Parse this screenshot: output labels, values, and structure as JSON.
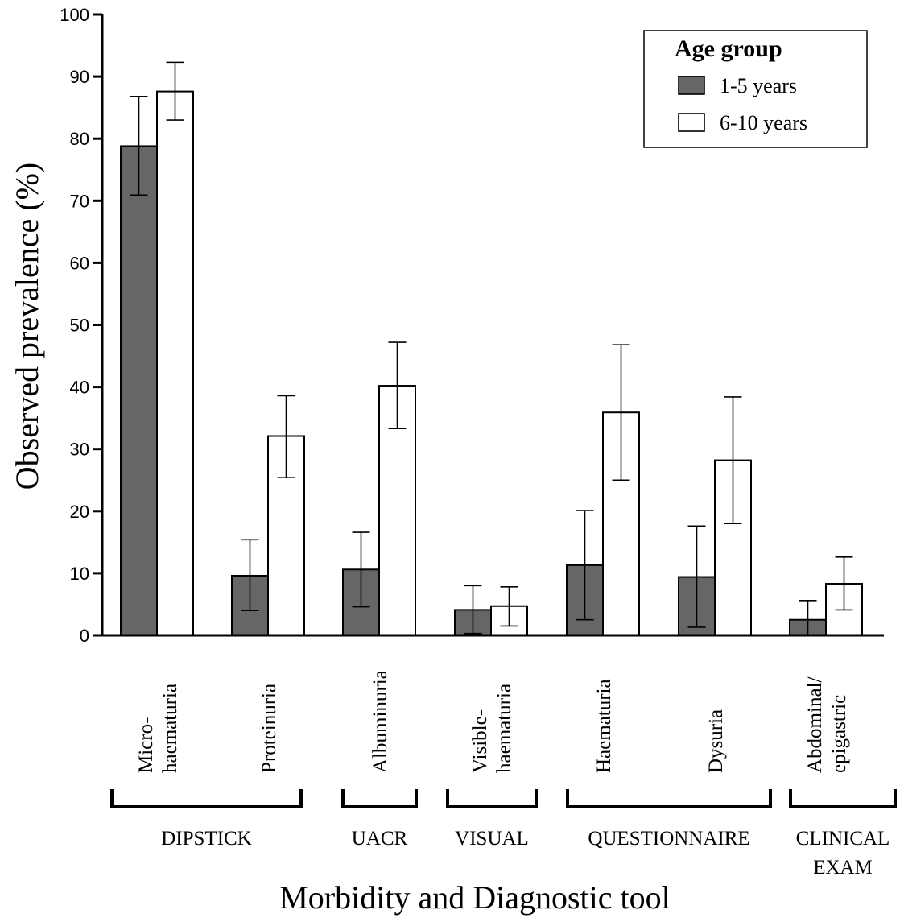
{
  "chart_data": {
    "type": "bar",
    "title": "",
    "xlabel": "Morbidity and Diagnostic tool",
    "ylabel": "Observed prevalence (%)",
    "ylim": [
      0,
      100
    ],
    "yticks": [
      0,
      10,
      20,
      30,
      40,
      50,
      60,
      70,
      80,
      90,
      100
    ],
    "grid": false,
    "legend": {
      "title": "Age group",
      "placement": "top-right"
    },
    "categories": [
      [
        "Micro-",
        "haematuria"
      ],
      [
        "Proteinuria"
      ],
      [
        "Albuminuria"
      ],
      [
        "Visible-",
        "haematuria"
      ],
      [
        "Haematuria"
      ],
      [
        "Dysuria"
      ],
      [
        "Abdominal/",
        "epigastric"
      ]
    ],
    "series": [
      {
        "name": "1-5 years",
        "color": "#666666",
        "values": [
          78.8,
          9.6,
          10.6,
          4.1,
          11.3,
          9.4,
          2.5
        ],
        "lower": [
          70.9,
          4.0,
          4.6,
          0.3,
          2.5,
          1.3,
          0.0
        ],
        "upper": [
          86.8,
          15.4,
          16.6,
          8.0,
          20.1,
          17.6,
          5.6
        ]
      },
      {
        "name": "6-10 years",
        "color": "#ffffff",
        "values": [
          87.6,
          32.1,
          40.2,
          4.7,
          35.9,
          28.2,
          8.3
        ],
        "lower": [
          83.0,
          25.4,
          33.3,
          1.5,
          25.0,
          18.0,
          4.1
        ],
        "upper": [
          92.3,
          38.6,
          47.2,
          7.8,
          46.8,
          38.4,
          12.6
        ]
      }
    ],
    "groups": [
      {
        "label": [
          "DIPSTICK"
        ],
        "categories": [
          0,
          1
        ]
      },
      {
        "label": [
          "UACR"
        ],
        "categories": [
          2
        ]
      },
      {
        "label": [
          "VISUAL"
        ],
        "categories": [
          3
        ]
      },
      {
        "label": [
          "QUESTIONNAIRE"
        ],
        "categories": [
          4,
          5
        ]
      },
      {
        "label": [
          "CLINICAL",
          "EXAM"
        ],
        "categories": [
          6
        ]
      }
    ]
  }
}
